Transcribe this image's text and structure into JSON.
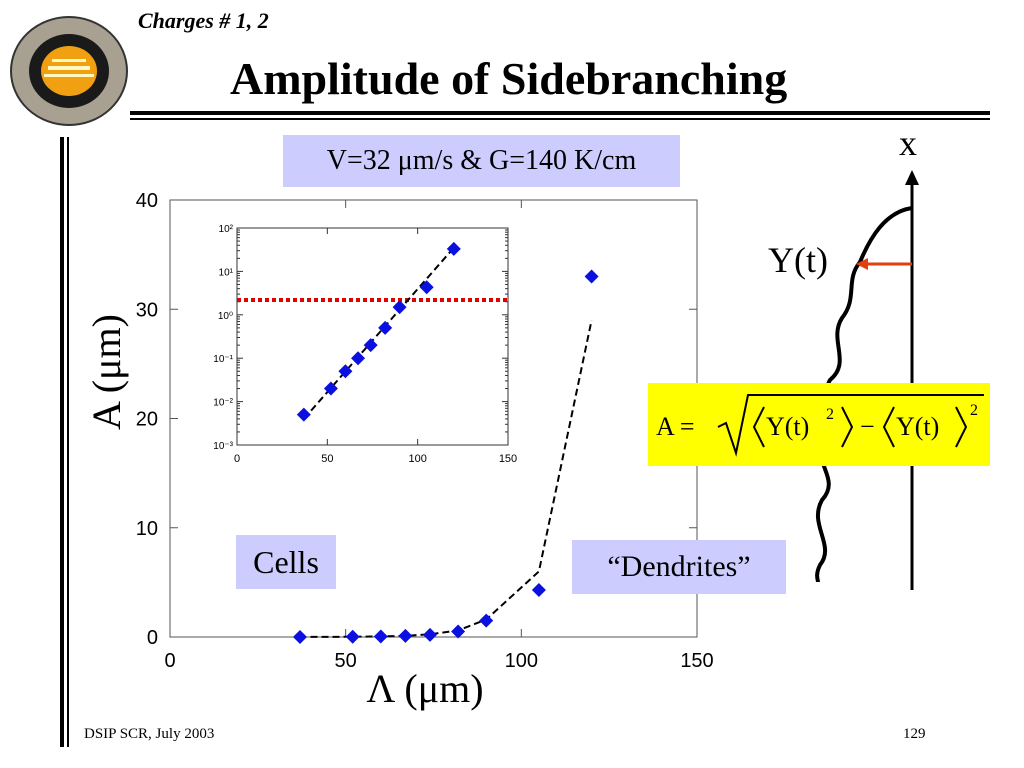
{
  "slide": {
    "subtitle": "Charges # 1, 2",
    "title": "Amplitude of Sidebranching",
    "condition": "V=32 μm/s & G=140 K/cm",
    "cells_label": "Cells",
    "dendrites_label": "“Dendrites”",
    "footer_left": "DSIP SCR, July 2003",
    "footer_right": "129"
  },
  "sketch": {
    "x_label": "x",
    "y_label": "Y(t)",
    "arrow_color": "#e04010"
  },
  "formula": {
    "lhs": "A =",
    "term1": "Y(t)",
    "exp1": "2",
    "minus": "−",
    "term2": "Y(t)",
    "exp2": "2"
  },
  "colors": {
    "marker": "#0a10e0",
    "threshold": "#e00000",
    "highlight": "#ccccff",
    "formula_bg": "#ffff00"
  },
  "chart_data": [
    {
      "type": "scatter",
      "title": "",
      "xlabel": "Λ  (μm)",
      "ylabel": "A  (μm)",
      "xlim": [
        0,
        150
      ],
      "ylim": [
        0,
        40
      ],
      "x_ticks": [
        "0",
        "50",
        "100",
        "150"
      ],
      "y_ticks": [
        "0",
        "10",
        "20",
        "30",
        "40"
      ],
      "series": [
        {
          "x": [
            37,
            52,
            60,
            67,
            74,
            82,
            90,
            105,
            120
          ],
          "values": [
            0.005,
            0.02,
            0.05,
            0.1,
            0.2,
            0.5,
            1.5,
            4.3,
            33
          ]
        }
      ],
      "fit_line": {
        "x": [
          40,
          52,
          60,
          67,
          74,
          82,
          90,
          105,
          120
        ],
        "values": [
          0.01,
          0.02,
          0.05,
          0.1,
          0.25,
          0.6,
          1.6,
          6,
          29
        ]
      }
    },
    {
      "type": "scatter",
      "title": "",
      "xlabel": "",
      "ylabel": "",
      "xlim": [
        0,
        150
      ],
      "ylim": [
        0.001,
        100
      ],
      "y_scale": "log",
      "x_ticks": [
        "0",
        "50",
        "100",
        "150"
      ],
      "y_ticks": [
        "10⁻³",
        "10⁻²",
        "10⁻¹",
        "10⁰",
        "10¹",
        "10²"
      ],
      "series": [
        {
          "x": [
            37,
            52,
            60,
            67,
            74,
            82,
            90,
            105,
            120
          ],
          "values": [
            0.005,
            0.02,
            0.05,
            0.1,
            0.2,
            0.5,
            1.5,
            4.3,
            33
          ]
        }
      ],
      "fit_line": {
        "x": [
          37,
          120
        ],
        "values": [
          0.004,
          35
        ]
      },
      "threshold": 2.2
    }
  ]
}
